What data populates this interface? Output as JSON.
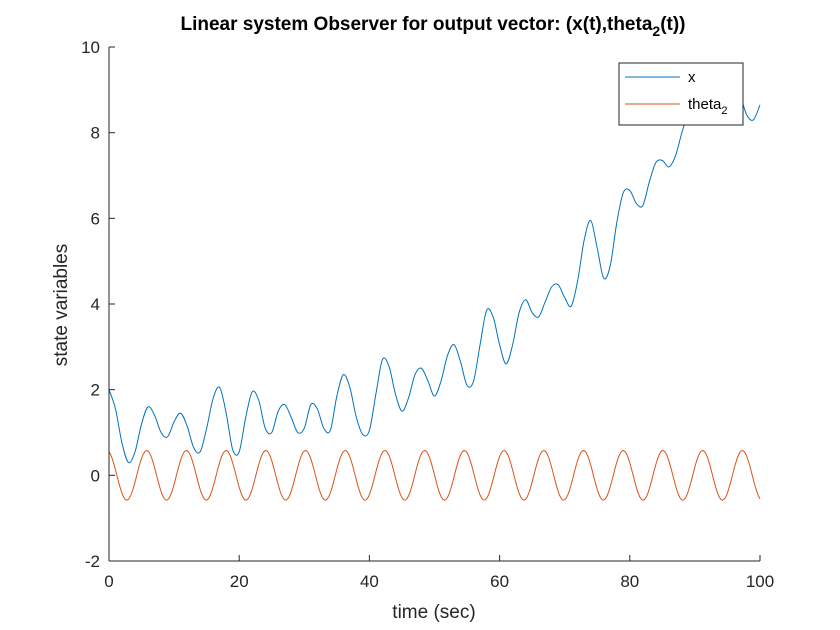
{
  "chart_data": {
    "type": "line",
    "title_main": "Linear system Observer for output vector: (x(t),theta",
    "title_sub": "2",
    "title_tail": "(t))",
    "xlabel": "time (sec)",
    "ylabel": "state variables",
    "xlim": [
      0,
      100
    ],
    "ylim": [
      -2,
      10
    ],
    "xticks": [
      "0",
      "20",
      "40",
      "60",
      "80",
      "100"
    ],
    "yticks": [
      "-2",
      "0",
      "2",
      "4",
      "6",
      "8",
      "10"
    ],
    "grid": false,
    "legend_position": "top-right",
    "series": [
      {
        "name": "x",
        "name_sub": "",
        "color": "#0072BD",
        "x": [
          0,
          1,
          2,
          3,
          4,
          5,
          6,
          7,
          8,
          9,
          10,
          11,
          12,
          13,
          14,
          15,
          16,
          17,
          18,
          19,
          20,
          21,
          22,
          23,
          24,
          25,
          26,
          27,
          28,
          29,
          30,
          31,
          32,
          33,
          34,
          35,
          36,
          37,
          38,
          39,
          40,
          41,
          42,
          43,
          44,
          45,
          46,
          47,
          48,
          49,
          50,
          51,
          52,
          53,
          54,
          55,
          56,
          57,
          58,
          59,
          60,
          61,
          62,
          63,
          64,
          65,
          66,
          67,
          68,
          69,
          70,
          71,
          72,
          73,
          74,
          75,
          76,
          77,
          78,
          79,
          80,
          81,
          82,
          83,
          84,
          85,
          86,
          87,
          88,
          89,
          90,
          91,
          92,
          93,
          94,
          95,
          96,
          97,
          98,
          99,
          100
        ],
        "y": [
          2.0,
          1.55,
          0.75,
          0.3,
          0.55,
          1.2,
          1.6,
          1.4,
          1.0,
          0.9,
          1.25,
          1.45,
          1.15,
          0.65,
          0.55,
          1.1,
          1.8,
          2.05,
          1.45,
          0.6,
          0.55,
          1.35,
          1.95,
          1.75,
          1.1,
          1.0,
          1.5,
          1.65,
          1.35,
          1.0,
          1.1,
          1.65,
          1.55,
          1.1,
          1.05,
          1.85,
          2.35,
          2.05,
          1.35,
          0.95,
          1.05,
          1.9,
          2.7,
          2.55,
          1.9,
          1.5,
          1.8,
          2.35,
          2.5,
          2.2,
          1.85,
          2.2,
          2.8,
          3.05,
          2.65,
          2.1,
          2.2,
          3.05,
          3.85,
          3.7,
          3.05,
          2.6,
          3.05,
          3.8,
          4.1,
          3.8,
          3.7,
          4.05,
          4.4,
          4.45,
          4.15,
          3.95,
          4.55,
          5.5,
          5.95,
          5.3,
          4.6,
          4.9,
          5.9,
          6.6,
          6.65,
          6.35,
          6.3,
          6.85,
          7.3,
          7.35,
          7.2,
          7.45,
          8.0,
          8.5,
          8.9,
          8.8,
          8.4,
          8.35,
          8.7,
          8.6,
          8.7,
          8.8,
          8.4,
          8.3,
          8.65
        ]
      },
      {
        "name": "theta",
        "name_sub": "2",
        "color": "#D95319",
        "amplitude": 0.58,
        "period": 6.1,
        "phase_start": 0.55
      }
    ]
  }
}
